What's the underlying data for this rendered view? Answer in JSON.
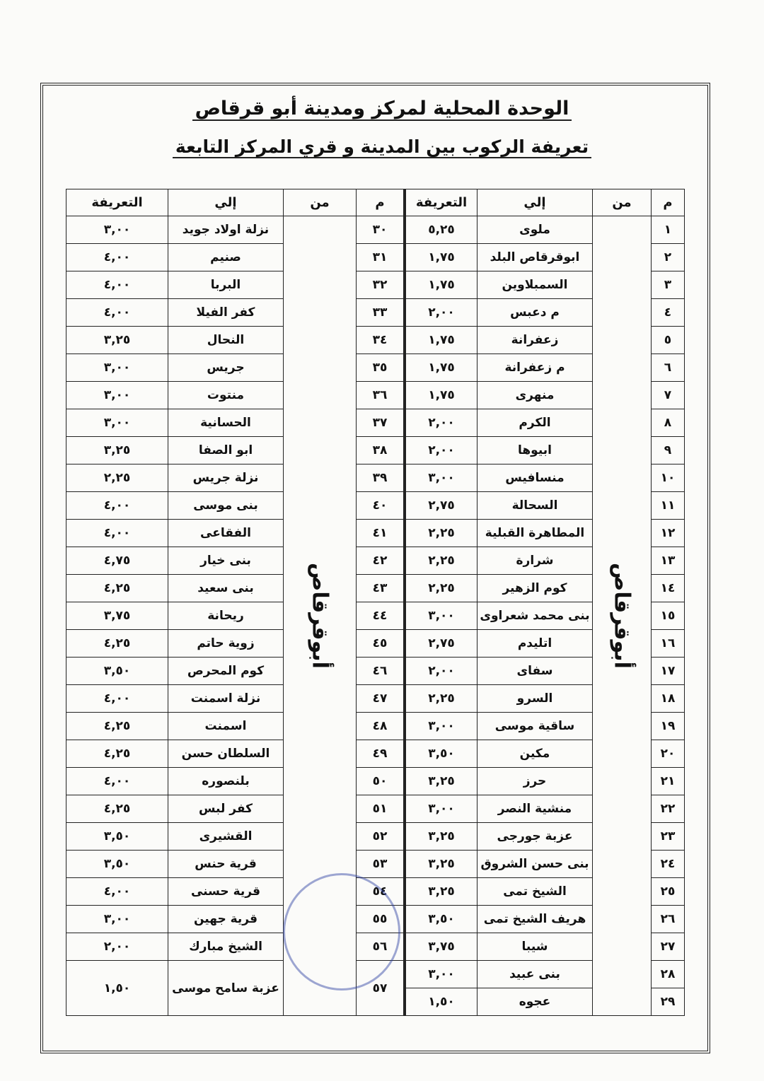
{
  "header": {
    "title": "الوحدة المحلية لمركز ومدينة أبو قرقاص",
    "subtitle": "تعريفة الركوب بين المدينة و قري المركز التابعة"
  },
  "tables": [
    {
      "columns": [
        "م",
        "من",
        "إلي",
        "التعريفة"
      ],
      "from": "أبوقرقاص",
      "rows": [
        [
          "١",
          "ملوى",
          "٥,٢٥"
        ],
        [
          "٢",
          "ابوقرقاص البلد",
          "١,٧٥"
        ],
        [
          "٣",
          "السمبلاوين",
          "١,٧٥"
        ],
        [
          "٤",
          "م دعبس",
          "٢,٠٠"
        ],
        [
          "٥",
          "زعفرانة",
          "١,٧٥"
        ],
        [
          "٦",
          "م زعفرانة",
          "١,٧٥"
        ],
        [
          "٧",
          "منهرى",
          "١,٧٥"
        ],
        [
          "٨",
          "الكرم",
          "٢,٠٠"
        ],
        [
          "٩",
          "ابيوها",
          "٢,٠٠"
        ],
        [
          "١٠",
          "منسافيس",
          "٣,٠٠"
        ],
        [
          "١١",
          "السحالة",
          "٢,٧٥"
        ],
        [
          "١٢",
          "المطاهرة القبلية",
          "٢,٢٥"
        ],
        [
          "١٣",
          "شرارة",
          "٢,٢٥"
        ],
        [
          "١٤",
          "كوم الزهير",
          "٢,٢٥"
        ],
        [
          "١٥",
          "بنى محمد شعراوى",
          "٣,٠٠"
        ],
        [
          "١٦",
          "اتليدم",
          "٢,٧٥"
        ],
        [
          "١٧",
          "سفاى",
          "٢,٠٠"
        ],
        [
          "١٨",
          "السرو",
          "٢,٢٥"
        ],
        [
          "١٩",
          "ساقية موسى",
          "٣,٠٠"
        ],
        [
          "٢٠",
          "مكين",
          "٣,٥٠"
        ],
        [
          "٢١",
          "حرز",
          "٣,٢٥"
        ],
        [
          "٢٢",
          "منشية النصر",
          "٣,٠٠"
        ],
        [
          "٢٣",
          "عزبة جورجى",
          "٣,٢٥"
        ],
        [
          "٢٤",
          "بنى حسن الشروق",
          "٣,٢٥"
        ],
        [
          "٢٥",
          "الشيخ تمى",
          "٣,٢٥"
        ],
        [
          "٢٦",
          "هريف الشيخ تمى",
          "٣,٥٠"
        ],
        [
          "٢٧",
          "شيبا",
          "٣,٧٥"
        ],
        [
          "٢٨",
          "بنى عبيد",
          "٣,٠٠"
        ],
        [
          "٢٩",
          "عجوه",
          "١,٥٠"
        ]
      ]
    },
    {
      "columns": [
        "م",
        "من",
        "إلي",
        "التعريفة"
      ],
      "from": "أبوقرقاص",
      "rows": [
        [
          "٣٠",
          "نزلة اولاد جويد",
          "٣,٠٠"
        ],
        [
          "٣١",
          "صنيم",
          "٤,٠٠"
        ],
        [
          "٣٢",
          "البربا",
          "٤,٠٠"
        ],
        [
          "٣٣",
          "كفر الفيلا",
          "٤,٠٠"
        ],
        [
          "٣٤",
          "النحال",
          "٣,٢٥"
        ],
        [
          "٣٥",
          "جريس",
          "٣,٠٠"
        ],
        [
          "٣٦",
          "منتوت",
          "٣,٠٠"
        ],
        [
          "٣٧",
          "الحسانية",
          "٣,٠٠"
        ],
        [
          "٣٨",
          "ابو الصفا",
          "٣,٢٥"
        ],
        [
          "٣٩",
          "نزلة جريس",
          "٢,٢٥"
        ],
        [
          "٤٠",
          "بنى موسى",
          "٤,٠٠"
        ],
        [
          "٤١",
          "الفقاعى",
          "٤,٠٠"
        ],
        [
          "٤٢",
          "بنى خيار",
          "٤,٧٥"
        ],
        [
          "٤٣",
          "بنى سعيد",
          "٤,٢٥"
        ],
        [
          "٤٤",
          "ريحانة",
          "٣,٧٥"
        ],
        [
          "٤٥",
          "زوية حاتم",
          "٤,٢٥"
        ],
        [
          "٤٦",
          "كوم المحرص",
          "٣,٥٠"
        ],
        [
          "٤٧",
          "نزلة اسمنت",
          "٤,٠٠"
        ],
        [
          "٤٨",
          "اسمنت",
          "٤,٢٥"
        ],
        [
          "٤٩",
          "السلطان حسن",
          "٤,٢٥"
        ],
        [
          "٥٠",
          "بلنصوره",
          "٤,٠٠"
        ],
        [
          "٥١",
          "كفر لبس",
          "٤,٢٥"
        ],
        [
          "٥٢",
          "القشيرى",
          "٣,٥٠"
        ],
        [
          "٥٣",
          "قرية حنس",
          "٣,٥٠"
        ],
        [
          "٥٤",
          "قرية حسنى",
          "٤,٠٠"
        ],
        [
          "٥٥",
          "قرية جهين",
          "٣,٠٠"
        ],
        [
          "٥٦",
          "الشيخ مبارك",
          "٢,٠٠"
        ],
        [
          "٥٧",
          "عزبة سامح موسى",
          "١,٥٠"
        ]
      ]
    }
  ]
}
